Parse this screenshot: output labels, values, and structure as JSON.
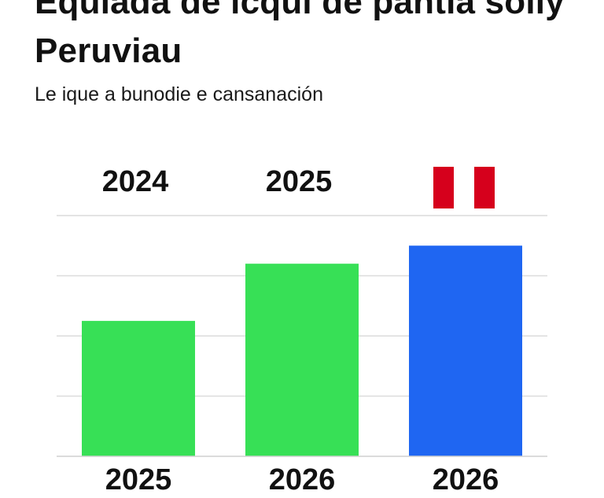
{
  "title": "Equiada de icqui de pantia solly Peruviau",
  "subtitle": "Le ique a bunodie e cansanación",
  "top_labels": [
    "2024",
    "2025"
  ],
  "flag": {
    "name": "peru-flag-icon",
    "colors": [
      "#d6001c",
      "#ffffff",
      "#d6001c"
    ]
  },
  "chart_data": {
    "type": "bar",
    "categories": [
      "2025",
      "2026",
      "2026"
    ],
    "values": [
      45,
      64,
      70
    ],
    "colors": [
      "#37e056",
      "#37e056",
      "#1f66f2"
    ],
    "ylim": [
      0,
      80
    ],
    "grid": true,
    "xlabel": "",
    "ylabel": ""
  }
}
